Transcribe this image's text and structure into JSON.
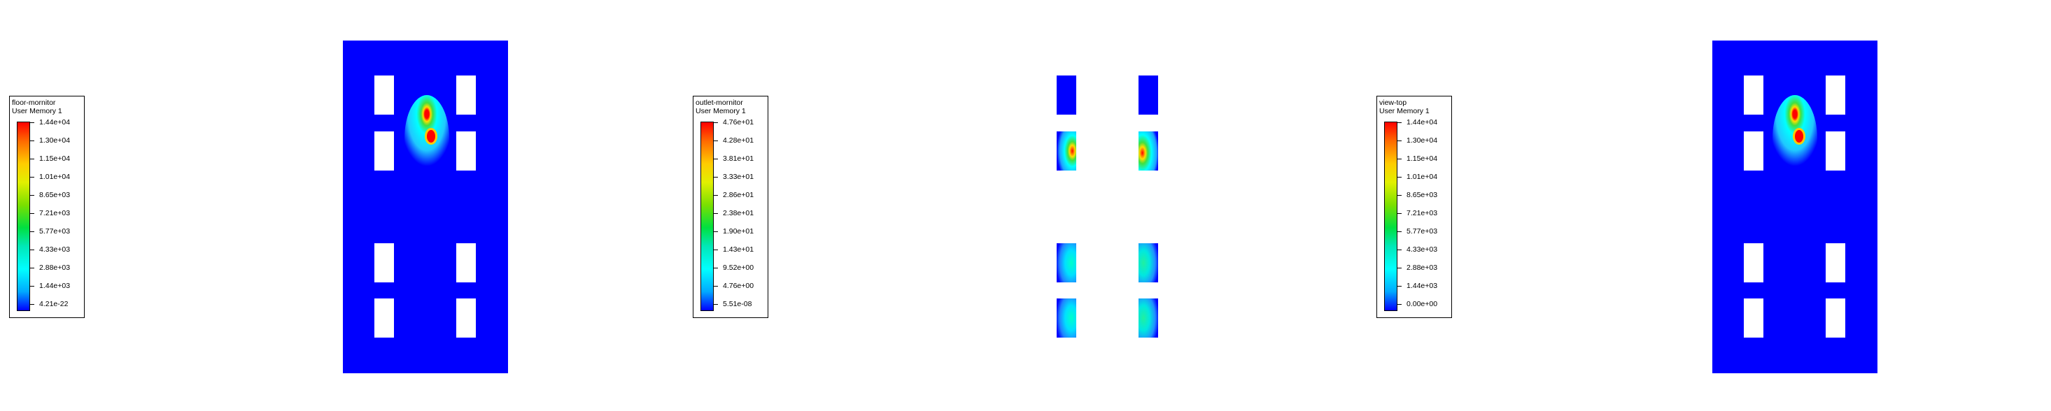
{
  "colors": {
    "field_low": "#0000ff",
    "field_high": "#ff0000",
    "background": "#ffffff",
    "frame": "#000000"
  },
  "panels": [
    {
      "legend": {
        "name": "floor-mornitor",
        "variable": "User Memory 1",
        "ticks": [
          "1.44e+04",
          "1.30e+04",
          "1.15e+04",
          "1.01e+04",
          "8.65e+03",
          "7.21e+03",
          "5.77e+03",
          "4.33e+03",
          "2.88e+03",
          "1.44e+03",
          "4.21e-22"
        ]
      }
    },
    {
      "legend": {
        "name": "outlet-mornitor",
        "variable": "User Memory 1",
        "ticks": [
          "4.76e+01",
          "4.28e+01",
          "3.81e+01",
          "3.33e+01",
          "2.86e+01",
          "2.38e+01",
          "1.90e+01",
          "1.43e+01",
          "9.52e+00",
          "4.76e+00",
          "5.51e-08"
        ]
      }
    },
    {
      "legend": {
        "name": "view-top",
        "variable": "User Memory 1",
        "ticks": [
          "1.44e+04",
          "1.30e+04",
          "1.15e+04",
          "1.01e+04",
          "8.65e+03",
          "7.21e+03",
          "5.77e+03",
          "4.33e+03",
          "2.88e+03",
          "1.44e+03",
          "0.00e+00"
        ]
      }
    }
  ]
}
